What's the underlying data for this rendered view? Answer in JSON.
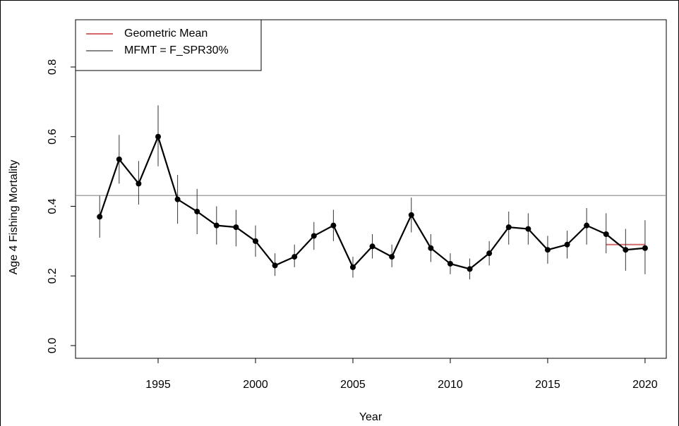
{
  "chart_data": {
    "type": "line",
    "x_label": "Year",
    "y_label": "Age 4 Fishing Mortality",
    "x": [
      1992,
      1993,
      1994,
      1995,
      1996,
      1997,
      1998,
      1999,
      2000,
      2001,
      2002,
      2003,
      2004,
      2005,
      2006,
      2007,
      2008,
      2009,
      2010,
      2011,
      2012,
      2013,
      2014,
      2015,
      2016,
      2017,
      2018,
      2019,
      2020
    ],
    "values": [
      0.37,
      0.535,
      0.465,
      0.6,
      0.42,
      0.385,
      0.345,
      0.34,
      0.3,
      0.23,
      0.255,
      0.315,
      0.345,
      0.225,
      0.285,
      0.255,
      0.375,
      0.28,
      0.235,
      0.22,
      0.265,
      0.34,
      0.335,
      0.275,
      0.29,
      0.345,
      0.32,
      0.275,
      0.28
    ],
    "lower": [
      0.31,
      0.465,
      0.405,
      0.515,
      0.35,
      0.32,
      0.29,
      0.285,
      0.255,
      0.2,
      0.225,
      0.275,
      0.3,
      0.195,
      0.25,
      0.225,
      0.325,
      0.24,
      0.205,
      0.19,
      0.23,
      0.29,
      0.29,
      0.235,
      0.25,
      0.29,
      0.265,
      0.215,
      0.205
    ],
    "upper": [
      0.43,
      0.605,
      0.53,
      0.69,
      0.49,
      0.45,
      0.4,
      0.39,
      0.345,
      0.265,
      0.29,
      0.355,
      0.39,
      0.255,
      0.32,
      0.29,
      0.425,
      0.32,
      0.265,
      0.25,
      0.3,
      0.385,
      0.38,
      0.315,
      0.33,
      0.395,
      0.38,
      0.335,
      0.36
    ],
    "color": "#000000",
    "reference_lines": [
      {
        "name": "Geometric Mean",
        "x": [
          2018,
          2020
        ],
        "value": 0.29,
        "color": "#d26a6a"
      },
      {
        "name": "MFMT = F_SPR30%",
        "value": 0.431,
        "color": "#888888"
      }
    ],
    "legend": "top-left",
    "xlim": [
      1990.76,
      2021.09
    ],
    "xticks": [
      1995,
      2000,
      2005,
      2010,
      2015,
      2020
    ],
    "ylim": [
      -0.0365,
      0.9357
    ],
    "yticks": [
      {
        "value": 0,
        "label": "0.0"
      },
      0.2,
      0.4,
      0.6,
      0.8
    ]
  }
}
